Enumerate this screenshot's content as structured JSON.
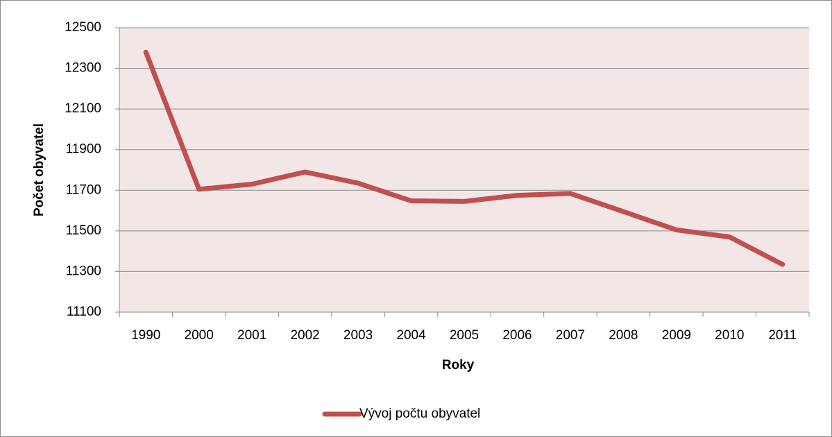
{
  "chart_data": {
    "type": "line",
    "x_label": "Roky",
    "y_label": "Počet obyvatel",
    "categories": [
      "1990",
      "2000",
      "2001",
      "2002",
      "2003",
      "2004",
      "2005",
      "2006",
      "2007",
      "2008",
      "2009",
      "2010",
      "2011"
    ],
    "series": [
      {
        "name": "Vývoj počtu obyvatel",
        "color": "#c0504d",
        "values": [
          12380,
          11705,
          11730,
          11790,
          11735,
          11648,
          11645,
          11675,
          11684,
          11595,
          11505,
          11470,
          11335
        ]
      }
    ],
    "ylim": [
      11100,
      12500
    ],
    "yticks": [
      11100,
      11300,
      11500,
      11700,
      11900,
      12100,
      12300,
      12500
    ],
    "grid": true,
    "legend": "bottom"
  }
}
